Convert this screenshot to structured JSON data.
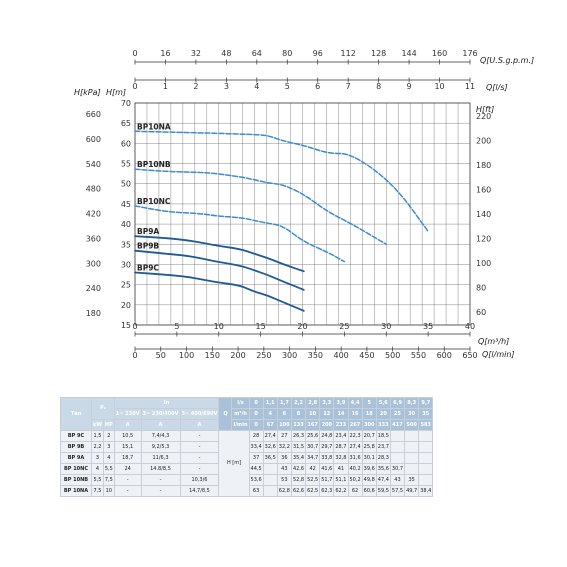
{
  "chart_data": {
    "type": "line",
    "xlabel_top_usgpm": "Q[U.S.g.p.m.]",
    "xlabel_top_ls": "Q[l/s]",
    "xlabel_bottom_m3h": "Q[m³/h]",
    "xlabel_bottom_lmin": "Q[l/min]",
    "ylabel_kpa": "H[kPa]",
    "ylabel_m": "H[m]",
    "ylabel_ft": "H[ft]",
    "xlim_m3h": [
      0,
      40
    ],
    "ylim_m": [
      15,
      70
    ],
    "grid": true,
    "ticks": {
      "usgpm": [
        "0",
        "16",
        "32",
        "48",
        "64",
        "80",
        "96",
        "112",
        "128",
        "144",
        "160",
        "176"
      ],
      "ls": [
        "0",
        "1",
        "2",
        "3",
        "4",
        "5",
        "6",
        "7",
        "8",
        "9",
        "10",
        "11"
      ],
      "m3h": [
        "0",
        "5",
        "10",
        "15",
        "20",
        "25",
        "30",
        "35",
        "40"
      ],
      "lmin": [
        "0",
        "50",
        "100",
        "150",
        "200",
        "250",
        "300",
        "350",
        "400",
        "450",
        "500",
        "550",
        "600",
        "650"
      ],
      "m": [
        "70",
        "65",
        "60",
        "55",
        "50",
        "45",
        "40",
        "35",
        "30",
        "25",
        "20",
        "15"
      ],
      "kpa": [
        "660",
        "600",
        "540",
        "480",
        "420",
        "360",
        "300",
        "240",
        "180"
      ],
      "ft": [
        "220",
        "200",
        "180",
        "160",
        "140",
        "120",
        "100",
        "80",
        "60"
      ]
    },
    "series": [
      {
        "name": "BP10NA",
        "x": [
          0,
          3.96,
          7.92,
          9.72,
          12.6,
          14.04,
          15.84,
          17.64,
          20.16,
          23.04,
          25.92,
          30.96,
          34.92
        ],
        "y": [
          63,
          62.8,
          62.6,
          62.5,
          62.3,
          62.2,
          62,
          60.6,
          59.5,
          57.5,
          57.5,
          49.7,
          38.4
        ]
      },
      {
        "name": "BP10NB",
        "x": [
          0,
          3.96,
          7.92,
          9.72,
          12.6,
          14.04,
          15.84,
          17.64,
          20.16,
          23.04,
          25.92,
          30.0
        ],
        "y": [
          53.6,
          53,
          52.8,
          52.5,
          51.7,
          51.1,
          50.2,
          49.8,
          47.4,
          43,
          40.0,
          35
        ]
      },
      {
        "name": "BP10NC",
        "x": [
          0,
          3.96,
          7.92,
          9.72,
          12.6,
          14.04,
          15.84,
          17.64,
          20.16,
          23.04,
          25.0
        ],
        "y": [
          44.5,
          43,
          42.6,
          42,
          41.6,
          41,
          40.2,
          39.6,
          35.6,
          33.0,
          30.7
        ]
      },
      {
        "name": "BP9A",
        "x": [
          0,
          3.96,
          6.12,
          7.92,
          9.72,
          12.6,
          14.04,
          15.84,
          17.64,
          20.16
        ],
        "y": [
          37,
          36.5,
          36,
          35.4,
          34.7,
          33.8,
          32.8,
          31.6,
          30.1,
          28.3
        ]
      },
      {
        "name": "BP9B",
        "x": [
          0,
          3.96,
          6.12,
          7.92,
          9.72,
          12.6,
          14.04,
          15.84,
          17.64,
          20.16
        ],
        "y": [
          33.4,
          32.6,
          32.2,
          31.5,
          30.7,
          29.7,
          28.7,
          27.4,
          25.8,
          23.7
        ]
      },
      {
        "name": "BP9C",
        "x": [
          0,
          3.96,
          6.12,
          7.92,
          9.72,
          12.6,
          14.04,
          15.84,
          17.64,
          20.16
        ],
        "y": [
          28,
          27.4,
          27,
          26.3,
          25.6,
          24.8,
          23.4,
          22.3,
          20.7,
          18.5
        ]
      }
    ]
  },
  "table": {
    "h_type": "Тип",
    "h_p2": "P₂",
    "h_in": "In",
    "h_kw": "kW",
    "h_hp": "HP",
    "h_v1": "1~ 230V",
    "h_v2": "3~ 230/400V",
    "h_v3": "3~ 400/690V",
    "h_a1": "A",
    "h_a2": "A",
    "h_a3": "A",
    "h_q": "Q",
    "h_ls": "l/s",
    "h_m3h": "m³/h",
    "h_lmin": "l/min",
    "h_hm": "H [m]",
    "q_ls": [
      "0",
      "1,1",
      "1,7",
      "2,2",
      "2,8",
      "3,3",
      "3,9",
      "4,4",
      "5",
      "5,6",
      "6,9",
      "8,3",
      "9,7"
    ],
    "q_m3h": [
      "0",
      "4",
      "6",
      "8",
      "10",
      "12",
      "14",
      "16",
      "18",
      "20",
      "25",
      "30",
      "35"
    ],
    "q_lmin": [
      "0",
      "67",
      "100",
      "133",
      "167",
      "200",
      "233",
      "267",
      "300",
      "333",
      "417",
      "500",
      "583"
    ],
    "rows": [
      {
        "type": "BP 9C",
        "kw": "1,5",
        "hp": "2",
        "a1": "10,5",
        "a2": "7,4/4,3",
        "a3": "-",
        "h": [
          "28",
          "27,4",
          "27",
          "26,3",
          "25,6",
          "24,8",
          "23,4",
          "22,3",
          "20,7",
          "18,5",
          "",
          "",
          ""
        ]
      },
      {
        "type": "BP 9B",
        "kw": "2,2",
        "hp": "3",
        "a1": "15,1",
        "a2": "9,2/5,3",
        "a3": "-",
        "h": [
          "33,4",
          "32,6",
          "32,2",
          "31,5",
          "30,7",
          "29,7",
          "28,7",
          "27,4",
          "25,8",
          "23,7",
          "",
          "",
          ""
        ]
      },
      {
        "type": "BP 9A",
        "kw": "3",
        "hp": "4",
        "a1": "18,7",
        "a2": "11/6,3",
        "a3": "-",
        "h": [
          "37",
          "36,5",
          "36",
          "35,4",
          "34,7",
          "33,8",
          "32,8",
          "31,6",
          "30,1",
          "28,3",
          "",
          "",
          ""
        ]
      },
      {
        "type": "BP 10NC",
        "kw": "4",
        "hp": "5,5",
        "a1": "24",
        "a2": "14.8/8,5",
        "a3": "-",
        "h": [
          "44,5",
          "",
          "43",
          "42,6",
          "42",
          "41,6",
          "41",
          "40,2",
          "39,6",
          "35,6",
          "30,7",
          "",
          ""
        ]
      },
      {
        "type": "BP 10NB",
        "kw": "5,5",
        "hp": "7,5",
        "a1": "-",
        "a2": "-",
        "a3": "10,3/6",
        "h": [
          "53,6",
          "",
          "53",
          "52,8",
          "52,5",
          "51,7",
          "51,1",
          "50,2",
          "49,8",
          "47,4",
          "43",
          "35",
          ""
        ]
      },
      {
        "type": "BP 10NA",
        "kw": "7,5",
        "hp": "10",
        "a1": "-",
        "a2": "-",
        "a3": "14,7/8,5",
        "h": [
          "63",
          "",
          "62,8",
          "62,6",
          "62,5",
          "62,3",
          "62,2",
          "62",
          "60,6",
          "59,5",
          "57,5",
          "49,7",
          "38,4"
        ]
      }
    ]
  },
  "colors": {
    "curve": "#5b9bd0",
    "curve_dark": "#2f6fa8",
    "grid": "#444444",
    "header": "#c9d9e8"
  }
}
